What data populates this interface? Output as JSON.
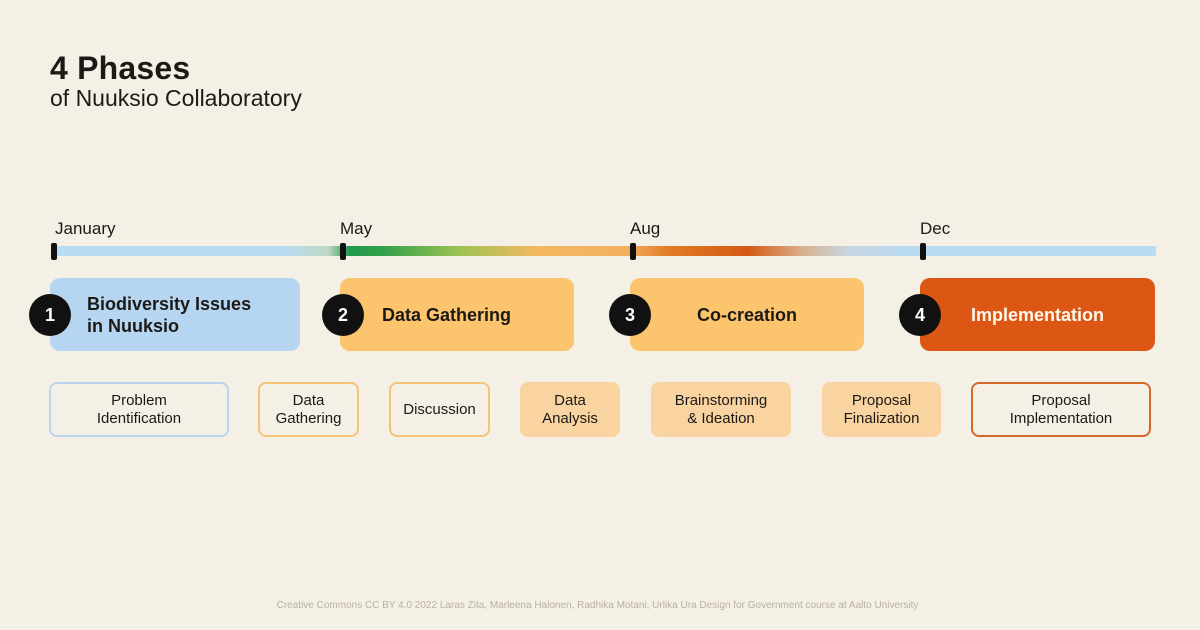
{
  "header": {
    "title": "4 Phases",
    "subtitle": "of Nuuksio Collaboratory"
  },
  "timeline": {
    "months": [
      "January",
      "May",
      "Aug",
      "Dec"
    ]
  },
  "phases": [
    {
      "number": "1",
      "label_line1": "Biodiversity Issues",
      "label_line2": "in Nuuksio",
      "color": "#b6d5f1"
    },
    {
      "number": "2",
      "label_line1": "Data Gathering",
      "color": "#fbc46d"
    },
    {
      "number": "3",
      "label_line1": "Co-creation",
      "color": "#fbc46d"
    },
    {
      "number": "4",
      "label_line1": "Implementation",
      "color": "#dc5714"
    }
  ],
  "steps": [
    {
      "line1": "Problem",
      "line2": "Identification",
      "style": "outline-blue"
    },
    {
      "line1": "Data",
      "line2": "Gathering",
      "style": "outline-orange"
    },
    {
      "line1": "Discussion",
      "style": "outline-orange"
    },
    {
      "line1": "Data",
      "line2": "Analysis",
      "style": "filled-peach"
    },
    {
      "line1": "Brainstorming",
      "line2": "& Ideation",
      "style": "filled-peach"
    },
    {
      "line1": "Proposal",
      "line2": "Finalization",
      "style": "filled-peach"
    },
    {
      "line1": "Proposal",
      "line2": "Implementation",
      "style": "outline-dark-orange"
    }
  ],
  "footer": {
    "credit": "Creative Commons CC BY 4.0 2022 Laras Zita, Marleena Halonen, Radhika Motani, Urlika Ura Design for Government course at Aalto University"
  }
}
